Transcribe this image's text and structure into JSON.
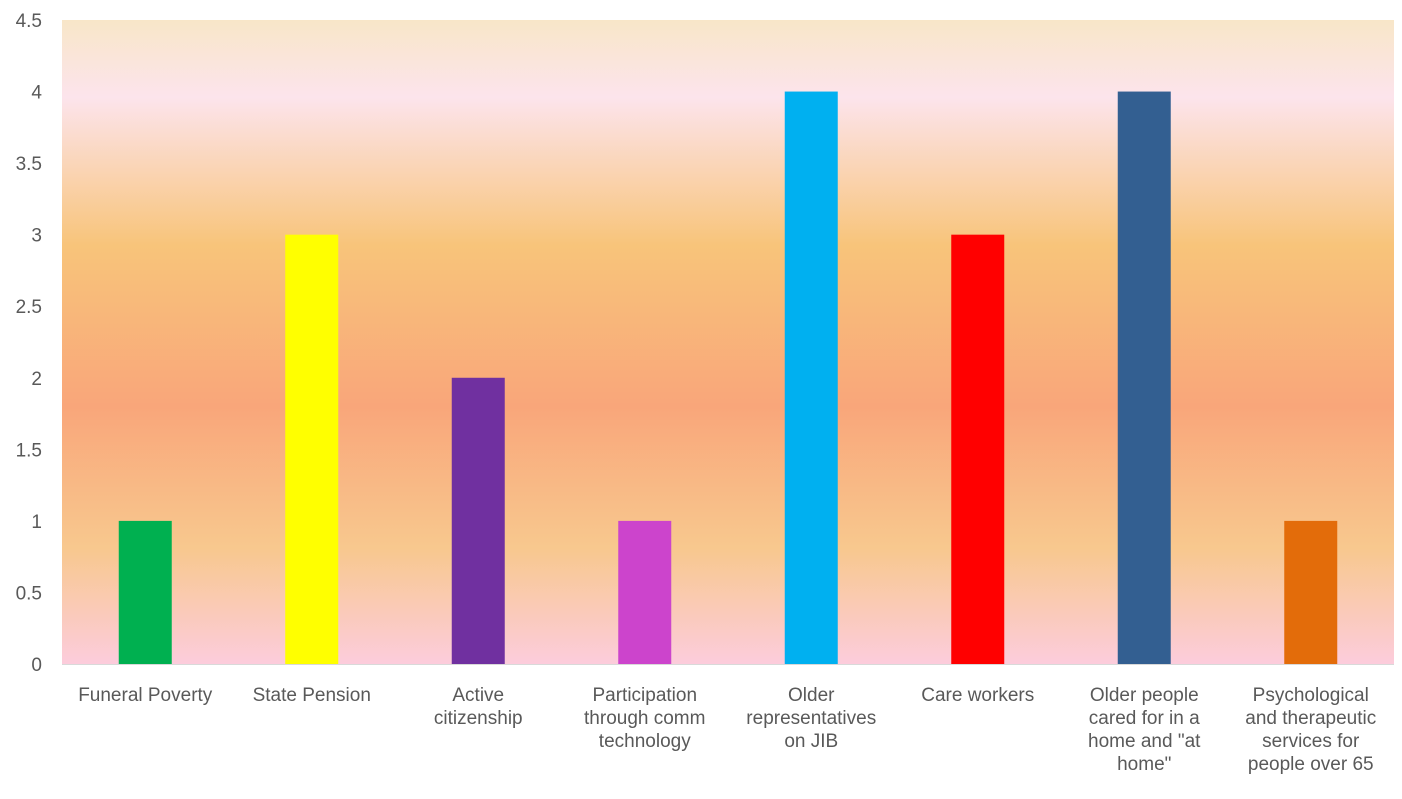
{
  "chart_data": {
    "type": "bar",
    "title": "",
    "xlabel": "",
    "ylabel": "",
    "ylim": [
      0,
      4.5
    ],
    "yticks": [
      "0",
      "0.5",
      "1",
      "1.5",
      "2",
      "2.5",
      "3",
      "3.5",
      "4",
      "4.5"
    ],
    "grid": false,
    "legend": "none",
    "categories": [
      [
        "Funeral Poverty"
      ],
      [
        "State Pension"
      ],
      [
        "Active",
        "citizenship"
      ],
      [
        "Participation",
        "through comm",
        "technology"
      ],
      [
        "Older",
        "representatives",
        "on JIB"
      ],
      [
        "Care workers"
      ],
      [
        "Older people",
        "cared for in a",
        "home and \"at",
        "home\""
      ],
      [
        "Psychological",
        "and therapeutic",
        "services for",
        "people over 65"
      ]
    ],
    "values": [
      1,
      3,
      2,
      1,
      4,
      3,
      4,
      1
    ],
    "colors": [
      "#00B050",
      "#FFFF00",
      "#7030A0",
      "#CC44CC",
      "#00B0F0",
      "#FF0000",
      "#335F91",
      "#E36C0A"
    ],
    "background_gradient": [
      "#F8E6C8",
      "#FCE4EC",
      "#F8C47A",
      "#F9A67A",
      "#F8C88E",
      "#FCCCDC"
    ]
  }
}
